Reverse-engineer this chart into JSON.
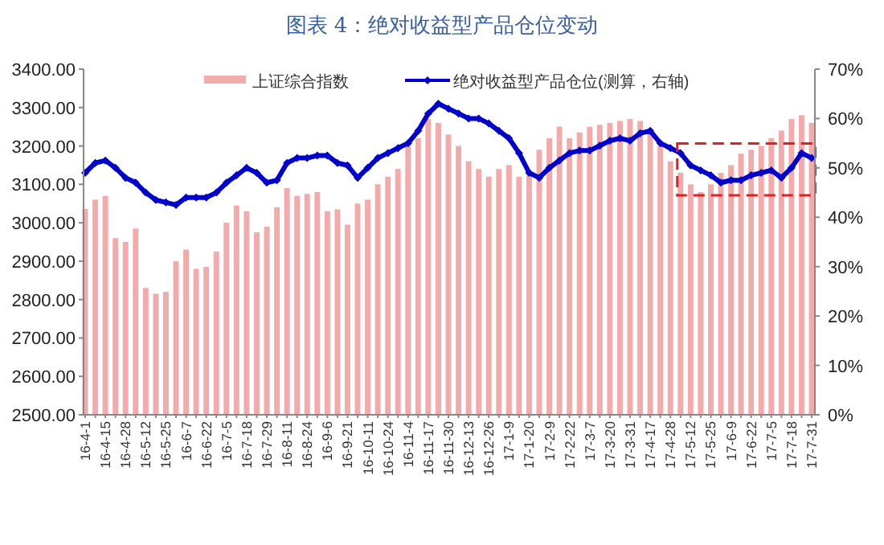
{
  "chart_data": {
    "type": "bar",
    "title": "图表 4：绝对收益型产品仓位变动",
    "categories": [
      "16-4-1",
      null,
      "16-4-15",
      null,
      "16-4-28",
      null,
      "16-5-12",
      null,
      "16-5-25",
      null,
      "16-6-7",
      null,
      "16-6-22",
      null,
      "16-7-5",
      null,
      "16-7-18",
      null,
      "16-7-29",
      null,
      "16-8-11",
      null,
      "16-8-24",
      null,
      "16-9-6",
      null,
      "16-9-21",
      null,
      "16-10-11",
      null,
      "16-10-24",
      null,
      "16-11-4",
      null,
      "16-11-17",
      null,
      "16-11-30",
      null,
      "16-12-13",
      null,
      "16-12-26",
      null,
      "17-1-9",
      null,
      "17-1-20",
      null,
      "17-2-9",
      null,
      "17-2-22",
      null,
      "17-3-7",
      null,
      "17-3-20",
      null,
      "17-3-31",
      null,
      "17-4-17",
      null,
      "17-4-28",
      null,
      "17-5-12",
      null,
      "17-5-25",
      null,
      "17-6-9",
      null,
      "17-6-22",
      null,
      "17-7-5",
      null,
      "17-7-18",
      null,
      "17-7-31"
    ],
    "series": [
      {
        "name": "上证综合指数",
        "color": "#f2aaaa",
        "values": [
          3036,
          3060,
          3070,
          2960,
          2950,
          2985,
          2830,
          2815,
          2820,
          2900,
          2930,
          2880,
          2885,
          2925,
          3000,
          3045,
          3030,
          2975,
          2990,
          3040,
          3090,
          3070,
          3075,
          3080,
          3030,
          3035,
          2995,
          3050,
          3060,
          3100,
          3120,
          3140,
          3200,
          3220,
          3270,
          3260,
          3230,
          3200,
          3160,
          3140,
          3120,
          3140,
          3150,
          3120,
          3130,
          3190,
          3220,
          3250,
          3220,
          3235,
          3250,
          3255,
          3260,
          3265,
          3270,
          3265,
          3230,
          3200,
          3160,
          3130,
          3100,
          3080,
          3100,
          3130,
          3150,
          3180,
          3190,
          3200,
          3220,
          3240,
          3270,
          3280,
          3260
        ]
      },
      {
        "name": "绝对收益型产品仓位(测算，右轴)",
        "type": "line",
        "axis": "y2",
        "color": "#0000cc",
        "values": [
          49,
          51,
          51.5,
          50,
          48,
          47,
          45,
          43.5,
          43,
          42.5,
          44,
          44,
          44,
          45,
          47,
          48.5,
          50,
          49,
          47,
          47.5,
          51,
          52,
          52,
          52.5,
          52.5,
          51,
          50.5,
          48,
          50,
          52,
          53,
          54,
          55,
          57.5,
          61,
          63,
          62,
          61,
          60,
          60,
          59,
          57.5,
          56,
          53,
          49,
          48,
          50,
          51.5,
          53,
          53.5,
          53.5,
          54.5,
          55.5,
          56,
          55.5,
          57,
          57.5,
          55,
          54,
          53,
          50.5,
          49.5,
          48.5,
          47,
          47.5,
          47.5,
          48.5,
          49,
          49.5,
          48,
          50,
          53,
          52
        ]
      }
    ],
    "ylim": [
      2500,
      3400
    ],
    "yticks": [
      {
        "value": 2500,
        "label": "2500.00"
      },
      {
        "value": 2600,
        "label": "2600.00"
      },
      {
        "value": 2700,
        "label": "2700.00"
      },
      {
        "value": 2800,
        "label": "2800.00"
      },
      {
        "value": 2900,
        "label": "2900.00"
      },
      {
        "value": 3000,
        "label": "3000.00"
      },
      {
        "value": 3100,
        "label": "3100.00"
      },
      {
        "value": 3200,
        "label": "3200.00"
      },
      {
        "value": 3300,
        "label": "3300.00"
      },
      {
        "value": 3400,
        "label": "3400.00"
      }
    ],
    "y2lim": [
      0,
      70
    ],
    "y2ticks": [
      {
        "value": 0,
        "label": "0%"
      },
      {
        "value": 10,
        "label": "10%"
      },
      {
        "value": 20,
        "label": "20%"
      },
      {
        "value": 30,
        "label": "30%"
      },
      {
        "value": 40,
        "label": "40%"
      },
      {
        "value": 50,
        "label": "50%"
      },
      {
        "value": 60,
        "label": "60%"
      },
      {
        "value": 70,
        "label": "70%"
      }
    ],
    "marker": "diamond",
    "legend": "top",
    "grid": false
  }
}
